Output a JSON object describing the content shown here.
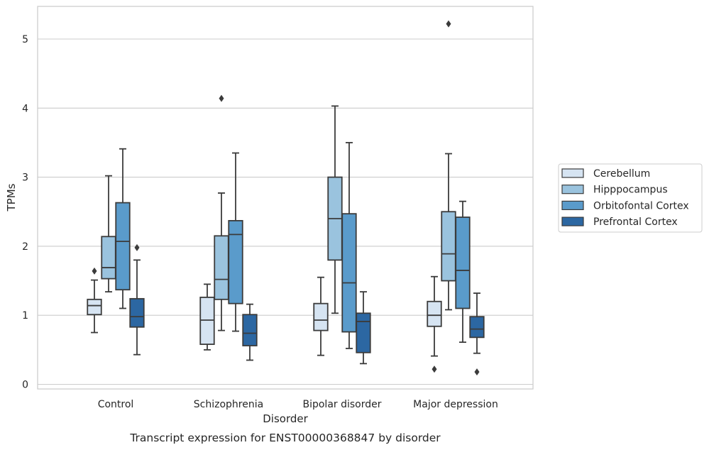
{
  "chart_data": {
    "type": "boxplot",
    "title": "",
    "caption": "Transcript expression for ENST00000368847 by disorder",
    "xlabel": "Disorder",
    "ylabel": "TPMs",
    "ylim": [
      -0.05,
      5.5
    ],
    "yticks": [
      0,
      1,
      2,
      3,
      4,
      5
    ],
    "grid": "horizontal",
    "legend_position": "right",
    "categories": [
      "Control",
      "Schizophrenia",
      "Bipolar disorder",
      "Major depression"
    ],
    "series": [
      {
        "name": "Cerebellum",
        "color": "#d6e4f2",
        "boxes": [
          {
            "whislo": 0.75,
            "q1": 1.01,
            "med": 1.14,
            "q3": 1.23,
            "whishi": 1.51,
            "fliers": [
              1.64
            ]
          },
          {
            "whislo": 0.5,
            "q1": 0.58,
            "med": 0.93,
            "q3": 1.26,
            "whishi": 1.45,
            "fliers": []
          },
          {
            "whislo": 0.42,
            "q1": 0.78,
            "med": 0.93,
            "q3": 1.17,
            "whishi": 1.55,
            "fliers": []
          },
          {
            "whislo": 0.41,
            "q1": 0.84,
            "med": 1.0,
            "q3": 1.2,
            "whishi": 1.56,
            "fliers": [
              0.22
            ]
          }
        ]
      },
      {
        "name": "Hipppocampus",
        "color": "#9ac3de",
        "boxes": [
          {
            "whislo": 1.34,
            "q1": 1.53,
            "med": 1.69,
            "q3": 2.14,
            "whishi": 3.02,
            "fliers": []
          },
          {
            "whislo": 0.78,
            "q1": 1.23,
            "med": 1.52,
            "q3": 2.15,
            "whishi": 2.77,
            "fliers": [
              4.14
            ]
          },
          {
            "whislo": 1.03,
            "q1": 1.8,
            "med": 2.4,
            "q3": 3.0,
            "whishi": 4.03,
            "fliers": []
          },
          {
            "whislo": 1.08,
            "q1": 1.5,
            "med": 1.89,
            "q3": 2.5,
            "whishi": 3.34,
            "fliers": [
              5.22
            ]
          }
        ]
      },
      {
        "name": "Orbitofontal Cortex",
        "color": "#5a9bcb",
        "boxes": [
          {
            "whislo": 1.1,
            "q1": 1.37,
            "med": 2.07,
            "q3": 2.63,
            "whishi": 3.41,
            "fliers": []
          },
          {
            "whislo": 0.77,
            "q1": 1.17,
            "med": 2.17,
            "q3": 2.37,
            "whishi": 3.35,
            "fliers": []
          },
          {
            "whislo": 0.52,
            "q1": 0.76,
            "med": 1.47,
            "q3": 2.47,
            "whishi": 3.5,
            "fliers": []
          },
          {
            "whislo": 0.61,
            "q1": 1.1,
            "med": 1.65,
            "q3": 2.42,
            "whishi": 2.65,
            "fliers": []
          }
        ]
      },
      {
        "name": "Prefrontal Cortex",
        "color": "#2c67a2",
        "boxes": [
          {
            "whislo": 0.43,
            "q1": 0.83,
            "med": 0.98,
            "q3": 1.24,
            "whishi": 1.8,
            "fliers": [
              1.98
            ]
          },
          {
            "whislo": 0.35,
            "q1": 0.56,
            "med": 0.74,
            "q3": 1.01,
            "whishi": 1.16,
            "fliers": []
          },
          {
            "whislo": 0.3,
            "q1": 0.46,
            "med": 0.91,
            "q3": 1.03,
            "whishi": 1.34,
            "fliers": []
          },
          {
            "whislo": 0.45,
            "q1": 0.68,
            "med": 0.8,
            "q3": 0.98,
            "whishi": 1.32,
            "fliers": [
              0.18
            ]
          }
        ]
      }
    ]
  }
}
